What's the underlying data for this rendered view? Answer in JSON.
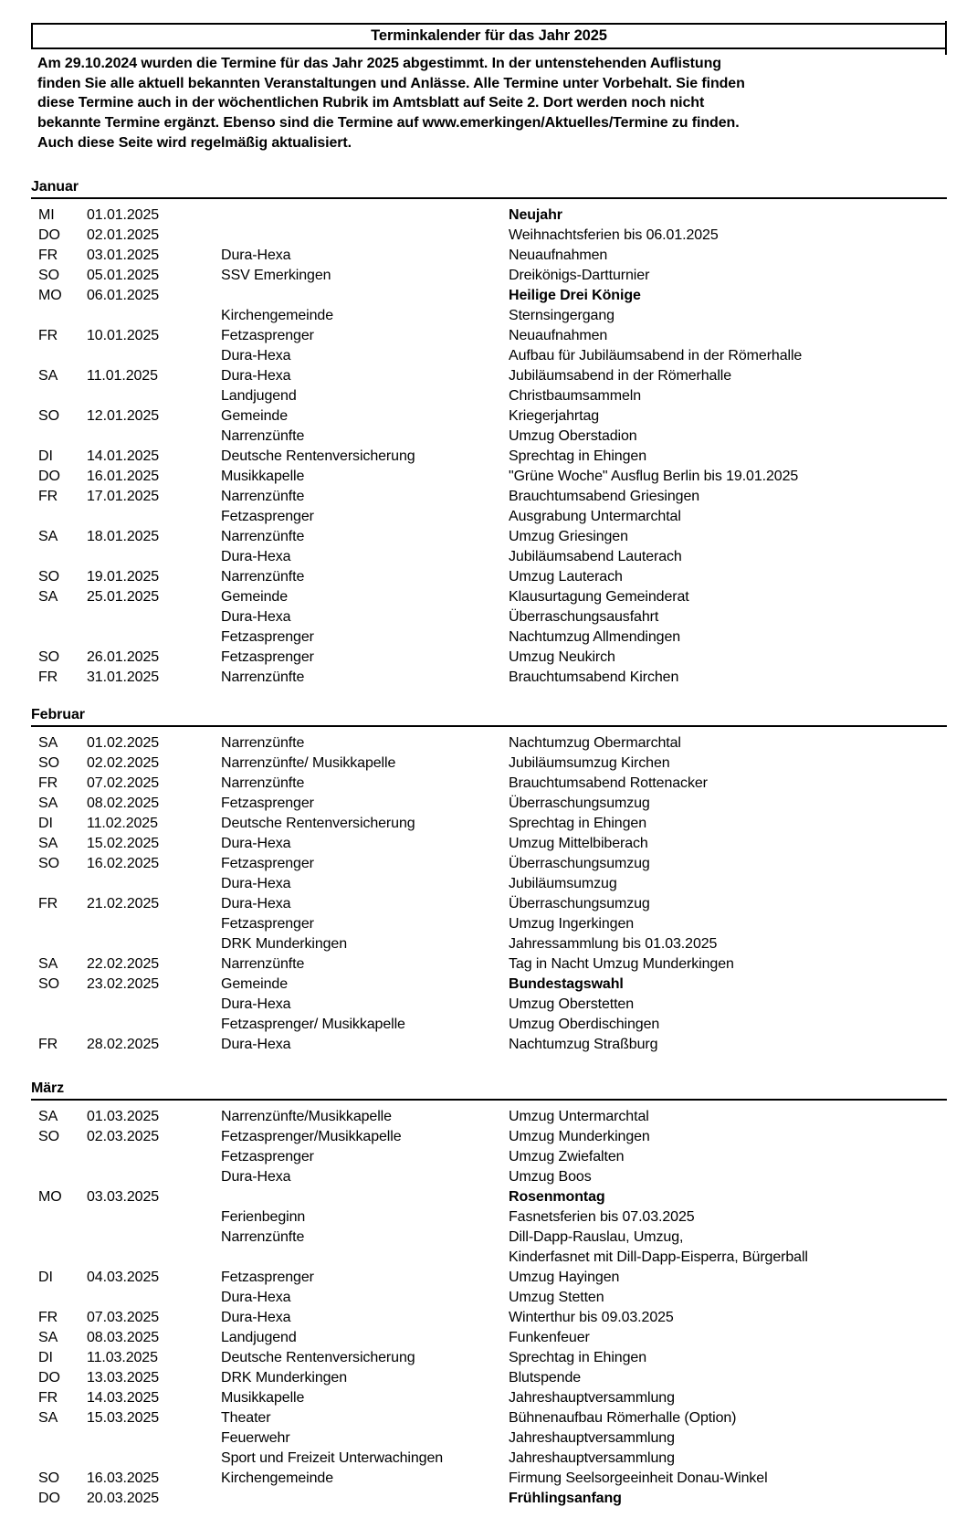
{
  "colors": {
    "background": "#ffffff",
    "text": "#000000",
    "border": "#000000"
  },
  "title": "Terminkalender für das Jahr 2025",
  "intro_lines": [
    "Am 29.10.2024 wurden die Termine für das Jahr 2025 abgestimmt. In der untenstehenden Auflistung",
    "finden Sie alle aktuell bekannten Veranstaltungen und Anlässe. Alle Termine unter Vorbehalt. Sie finden",
    "diese Termine auch in der wöchentlichen Rubrik im Amtsblatt auf Seite 2. Dort werden noch nicht",
    "bekannte Termine ergänzt. Ebenso sind die Termine auf www.emerkingen/Aktuelles/Termine zu finden.",
    "Auch diese Seite wird regelmäßig aktualisiert."
  ],
  "sections": [
    {
      "month": "Januar",
      "rows": [
        {
          "day": "MI",
          "date": "01.01.2025",
          "org": "",
          "event": "Neujahr",
          "bold": true
        },
        {
          "day": "DO",
          "date": "02.01.2025",
          "org": "",
          "event": "Weihnachtsferien bis 06.01.2025"
        },
        {
          "day": "FR",
          "date": "03.01.2025",
          "org": "Dura-Hexa",
          "event": "Neuaufnahmen"
        },
        {
          "day": "SO",
          "date": "05.01.2025",
          "org": "SSV Emerkingen",
          "event": "Dreikönigs-Dartturnier"
        },
        {
          "day": "MO",
          "date": "06.01.2025",
          "org": "",
          "event": "Heilige Drei Könige",
          "bold": true
        },
        {
          "day": "",
          "date": "",
          "org": "Kirchengemeinde",
          "event": "Sternsingergang"
        },
        {
          "day": "FR",
          "date": "10.01.2025",
          "org": "Fetzasprenger",
          "event": "Neuaufnahmen"
        },
        {
          "day": "",
          "date": "",
          "org": "Dura-Hexa",
          "event": "Aufbau für Jubiläumsabend in der Römerhalle"
        },
        {
          "day": "SA",
          "date": "11.01.2025",
          "org": "Dura-Hexa",
          "event": "Jubiläumsabend in der Römerhalle"
        },
        {
          "day": "",
          "date": "",
          "org": "Landjugend",
          "event": "Christbaumsammeln"
        },
        {
          "day": "SO",
          "date": "12.01.2025",
          "org": "Gemeinde",
          "event": "Kriegerjahrtag"
        },
        {
          "day": "",
          "date": "",
          "org": "Narrenzünfte",
          "event": "Umzug Oberstadion"
        },
        {
          "day": "DI",
          "date": "14.01.2025",
          "org": "Deutsche Rentenversicherung",
          "event": "Sprechtag in Ehingen"
        },
        {
          "day": "DO",
          "date": "16.01.2025",
          "org": "Musikkapelle",
          "event": "\"Grüne Woche\" Ausflug Berlin bis 19.01.2025"
        },
        {
          "day": "FR",
          "date": "17.01.2025",
          "org": "Narrenzünfte",
          "event": "Brauchtumsabend Griesingen"
        },
        {
          "day": "",
          "date": "",
          "org": "Fetzasprenger",
          "event": "Ausgrabung Untermarchtal"
        },
        {
          "day": "SA",
          "date": "18.01.2025",
          "org": "Narrenzünfte",
          "event": "Umzug Griesingen"
        },
        {
          "day": "",
          "date": "",
          "org": "Dura-Hexa",
          "event": "Jubiläumsabend Lauterach"
        },
        {
          "day": "SO",
          "date": "19.01.2025",
          "org": "Narrenzünfte",
          "event": "Umzug Lauterach"
        },
        {
          "day": "SA",
          "date": "25.01.2025",
          "org": "Gemeinde",
          "event": "Klausurtagung Gemeinderat"
        },
        {
          "day": "",
          "date": "",
          "org": "Dura-Hexa",
          "event": "Überraschungsausfahrt"
        },
        {
          "day": "",
          "date": "",
          "org": "Fetzasprenger",
          "event": "Nachtumzug Allmendingen"
        },
        {
          "day": "SO",
          "date": "26.01.2025",
          "org": "Fetzasprenger",
          "event": "Umzug Neukirch"
        },
        {
          "day": "FR",
          "date": "31.01.2025",
          "org": "Narrenzünfte",
          "event": "Brauchtumsabend Kirchen"
        }
      ]
    },
    {
      "month": "Februar",
      "rows": [
        {
          "day": "SA",
          "date": "01.02.2025",
          "org": "Narrenzünfte",
          "event": "Nachtumzug Obermarchtal"
        },
        {
          "day": "SO",
          "date": "02.02.2025",
          "org": "Narrenzünfte/ Musikkapelle",
          "event": "Jubiläumsumzug Kirchen"
        },
        {
          "day": "FR",
          "date": "07.02.2025",
          "org": "Narrenzünfte",
          "event": "Brauchtumsabend Rottenacker"
        },
        {
          "day": "SA",
          "date": "08.02.2025",
          "org": "Fetzasprenger",
          "event": "Überraschungsumzug"
        },
        {
          "day": "DI",
          "date": "11.02.2025",
          "org": "Deutsche Rentenversicherung",
          "event": "Sprechtag in Ehingen"
        },
        {
          "day": "SA",
          "date": "15.02.2025",
          "org": "Dura-Hexa",
          "event": "Umzug Mittelbiberach"
        },
        {
          "day": "SO",
          "date": "16.02.2025",
          "org": "Fetzasprenger",
          "event": "Überraschungsumzug"
        },
        {
          "day": "",
          "date": "",
          "org": "Dura-Hexa",
          "event": "Jubiläumsumzug"
        },
        {
          "day": "FR",
          "date": "21.02.2025",
          "org": "Dura-Hexa",
          "event": "Überraschungsumzug"
        },
        {
          "day": "",
          "date": "",
          "org": "Fetzasprenger",
          "event": "Umzug Ingerkingen"
        },
        {
          "day": "",
          "date": "",
          "org": "DRK Munderkingen",
          "event": "Jahressammlung bis 01.03.2025"
        },
        {
          "day": "SA",
          "date": "22.02.2025",
          "org": "Narrenzünfte",
          "event": "Tag in Nacht Umzug Munderkingen"
        },
        {
          "day": "SO",
          "date": "23.02.2025",
          "org": "Gemeinde",
          "event": "Bundestagswahl",
          "bold": true
        },
        {
          "day": "",
          "date": "",
          "org": "Dura-Hexa",
          "event": "Umzug Oberstetten"
        },
        {
          "day": "",
          "date": "",
          "org": "Fetzasprenger/ Musikkapelle",
          "event": "Umzug Oberdischingen"
        },
        {
          "day": "FR",
          "date": "28.02.2025",
          "org": "Dura-Hexa",
          "event": "Nachtumzug Straßburg"
        }
      ]
    },
    {
      "month": "März",
      "rows": [
        {
          "day": "SA",
          "date": "01.03.2025",
          "org": "Narrenzünfte/Musikkapelle",
          "event": "Umzug Untermarchtal"
        },
        {
          "day": "SO",
          "date": "02.03.2025",
          "org": "Fetzasprenger/Musikkapelle",
          "event": "Umzug Munderkingen"
        },
        {
          "day": "",
          "date": "",
          "org": "Fetzasprenger",
          "event": "Umzug Zwiefalten"
        },
        {
          "day": "",
          "date": "",
          "org": "Dura-Hexa",
          "event": "Umzug Boos"
        },
        {
          "day": "MO",
          "date": "03.03.2025",
          "org": "",
          "event": "Rosenmontag",
          "bold": true
        },
        {
          "day": "",
          "date": "",
          "org": "Ferienbeginn",
          "event": "Fasnetsferien bis 07.03.2025"
        },
        {
          "day": "",
          "date": "",
          "org": "Narrenzünfte",
          "event": "Dill-Dapp-Rauslau, Umzug,"
        },
        {
          "day": "",
          "date": "",
          "org": "",
          "event": "Kinderfasnet mit Dill-Dapp-Eisperra, Bürgerball"
        },
        {
          "day": "DI",
          "date": "04.03.2025",
          "org": "Fetzasprenger",
          "event": "Umzug Hayingen"
        },
        {
          "day": "",
          "date": "",
          "org": "Dura-Hexa",
          "event": "Umzug Stetten"
        },
        {
          "day": "FR",
          "date": "07.03.2025",
          "org": "Dura-Hexa",
          "event": "Winterthur bis 09.03.2025"
        },
        {
          "day": "SA",
          "date": "08.03.2025",
          "org": "Landjugend",
          "event": "Funkenfeuer"
        },
        {
          "day": "DI",
          "date": "11.03.2025",
          "org": "Deutsche Rentenversicherung",
          "event": "Sprechtag in Ehingen"
        },
        {
          "day": "DO",
          "date": "13.03.2025",
          "org": "DRK Munderkingen",
          "event": "Blutspende"
        },
        {
          "day": "FR",
          "date": "14.03.2025",
          "org": "Musikkapelle",
          "event": "Jahreshauptversammlung"
        },
        {
          "day": "SA",
          "date": "15.03.2025",
          "org": "Theater",
          "event": "Bühnenaufbau Römerhalle (Option)"
        },
        {
          "day": "",
          "date": "",
          "org": "Feuerwehr",
          "event": "Jahreshauptversammlung"
        },
        {
          "day": "",
          "date": "",
          "org": "Sport und Freizeit Unterwachingen",
          "event": "Jahreshauptversammlung"
        },
        {
          "day": "SO",
          "date": "16.03.2025",
          "org": "Kirchengemeinde",
          "event": "Firmung Seelsorgeeinheit Donau-Winkel"
        },
        {
          "day": "DO",
          "date": "20.03.2025",
          "org": "",
          "event": "Frühlingsanfang",
          "bold": true
        }
      ]
    }
  ]
}
